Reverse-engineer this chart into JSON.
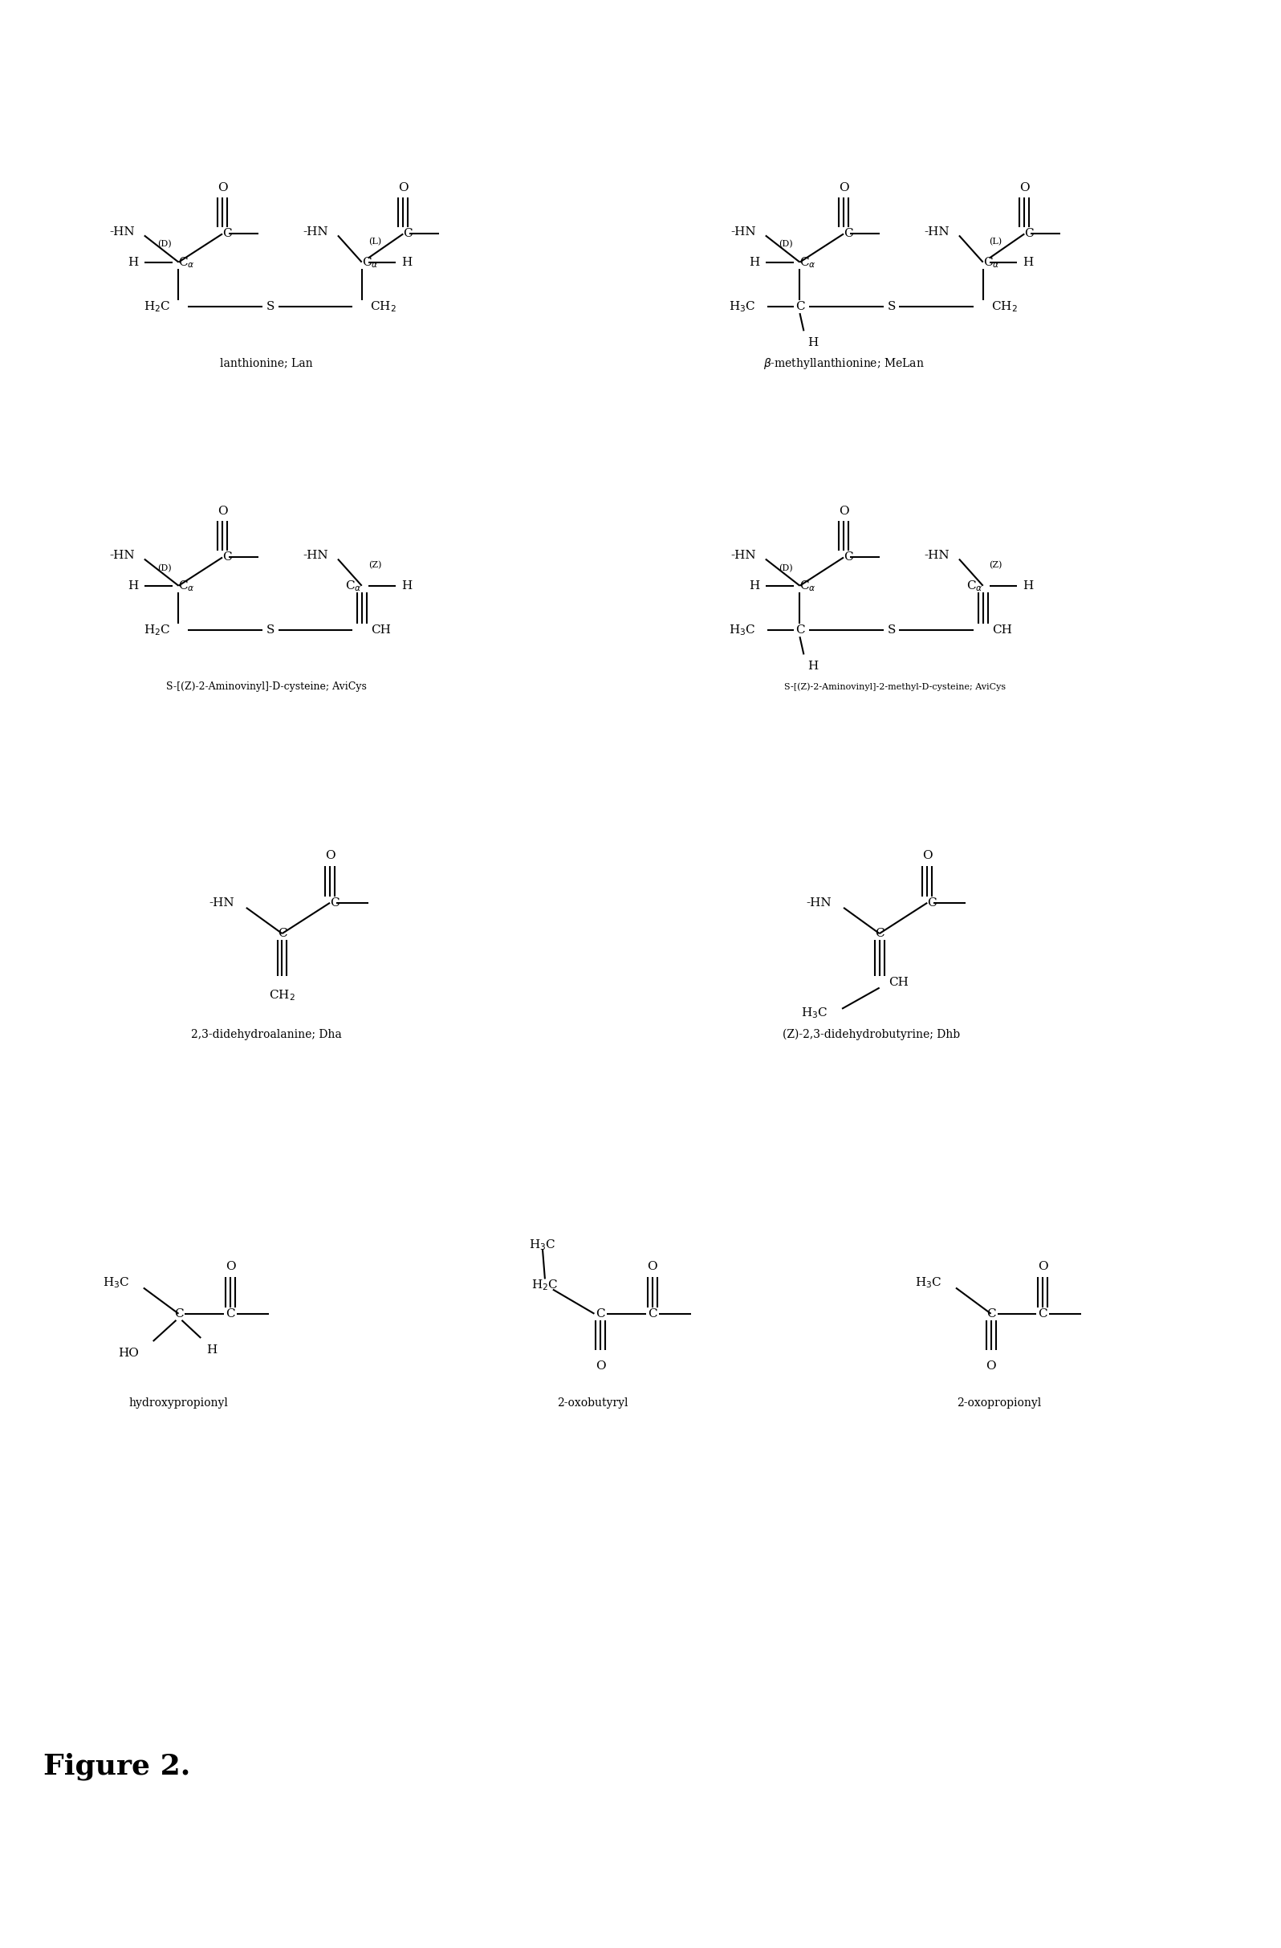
{
  "background": "#ffffff",
  "fig_label": "Figure 2.",
  "structures": {
    "lan_label": "lanthionine; Lan",
    "melan_label": "β-methyllanthionine; MeLan",
    "avicys_label": "S-[(Z)-2-Aminovinyl]-D-cysteine; AviCys",
    "avicys2_label": "S-[(Z)-2-Aminovinyl]-2-methyl-D-cysteine; AviCys",
    "dha_label": "2,3-didehydroalanine; Dha",
    "dhb_label": "(Z)-2,3-didehydrobutyrine; Dhb",
    "hp_label": "hydroxypropionyl",
    "oxobu_label": "2-oxobutyryl",
    "oxopro_label": "2-oxopropionyl"
  }
}
